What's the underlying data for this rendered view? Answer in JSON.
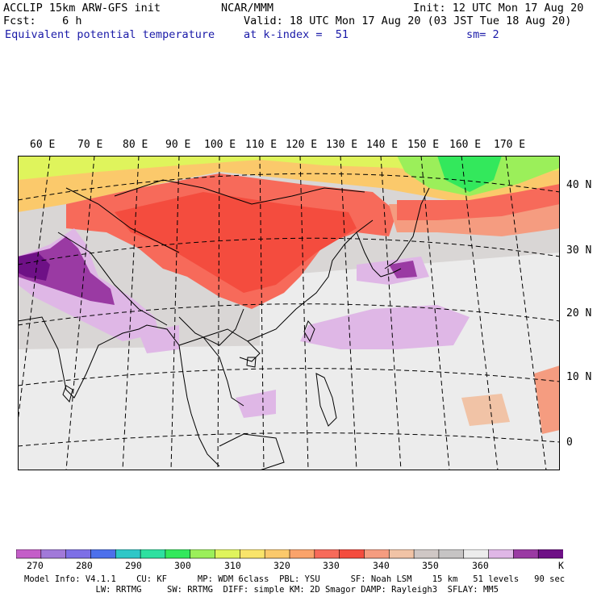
{
  "header": {
    "line1_left": "ACCLIP 15km ARW-GFS init",
    "line1_center": "NCAR/MMM",
    "line1_right": "Init: 12 UTC Mon 17 Aug 20",
    "line2_left": "Fcst:    6 h",
    "line2_right": "Valid: 18 UTC Mon 17 Aug 20 (03 JST Tue 18 Aug 20)",
    "line3_left": "Equivalent potential temperature",
    "line3_center": "at k-index =  51",
    "line3_right": "sm= 2"
  },
  "map": {
    "lon_labels": [
      "60 E",
      "70 E",
      "80 E",
      "90 E",
      "100 E",
      "110 E",
      "120 E",
      "130 E",
      "140 E",
      "150 E",
      "160 E",
      "170 E"
    ],
    "lat_labels": [
      "40 N",
      "30 N",
      "20 N",
      "10 N",
      "0"
    ],
    "colors": {
      "land_outline": "#000000",
      "graticule": "#000000"
    }
  },
  "colorbar": {
    "colors": [
      "#c45ec8",
      "#a179d9",
      "#7d6fe6",
      "#4d70eb",
      "#2ec7c7",
      "#2ee0a0",
      "#33e85c",
      "#9bef5a",
      "#dff45c",
      "#f9e46a",
      "#fbc96b",
      "#faa36a",
      "#f76a5a",
      "#f44c3e",
      "#f59c80",
      "#f1c3a6",
      "#cfc7c5",
      "#c6c4c4",
      "#ececec",
      "#dfb7e6",
      "#9a3aa3",
      "#6e1086"
    ],
    "labels": [
      "270",
      "280",
      "290",
      "300",
      "310",
      "320",
      "330",
      "340",
      "350",
      "360"
    ],
    "unit": "K"
  },
  "footer": {
    "line1": "Model Info: V4.1.1    CU: KF      MP: WDM 6class  PBL: YSU      SF: Noah LSM    15 km   51 levels   90 sec",
    "line2": "              LW: RRTMG     SW: RRTMG  DIFF: simple KM: 2D Smagor DAMP: Rayleigh3  SFLAY: MM5"
  }
}
